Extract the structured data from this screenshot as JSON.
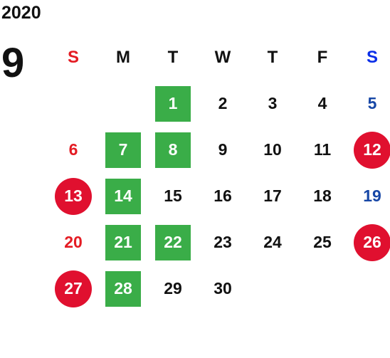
{
  "calendar": {
    "year": "2020",
    "month": "9",
    "weekdays": [
      "S",
      "M",
      "T",
      "W",
      "T",
      "F",
      "S"
    ],
    "weeks": [
      [
        {
          "day": "",
          "style": "empty"
        },
        {
          "day": "",
          "style": "empty"
        },
        {
          "day": "1",
          "style": "green"
        },
        {
          "day": "2",
          "style": "normal"
        },
        {
          "day": "3",
          "style": "normal"
        },
        {
          "day": "4",
          "style": "normal"
        },
        {
          "day": "5",
          "style": "saturday"
        }
      ],
      [
        {
          "day": "6",
          "style": "sunday"
        },
        {
          "day": "7",
          "style": "green"
        },
        {
          "day": "8",
          "style": "green"
        },
        {
          "day": "9",
          "style": "normal"
        },
        {
          "day": "10",
          "style": "normal"
        },
        {
          "day": "11",
          "style": "normal"
        },
        {
          "day": "12",
          "style": "red-circle"
        }
      ],
      [
        {
          "day": "13",
          "style": "red-circle"
        },
        {
          "day": "14",
          "style": "green"
        },
        {
          "day": "15",
          "style": "normal"
        },
        {
          "day": "16",
          "style": "normal"
        },
        {
          "day": "17",
          "style": "normal"
        },
        {
          "day": "18",
          "style": "normal"
        },
        {
          "day": "19",
          "style": "saturday"
        }
      ],
      [
        {
          "day": "20",
          "style": "sunday"
        },
        {
          "day": "21",
          "style": "green"
        },
        {
          "day": "22",
          "style": "green"
        },
        {
          "day": "23",
          "style": "normal"
        },
        {
          "day": "24",
          "style": "normal"
        },
        {
          "day": "25",
          "style": "normal"
        },
        {
          "day": "26",
          "style": "red-circle"
        }
      ],
      [
        {
          "day": "27",
          "style": "red-circle"
        },
        {
          "day": "28",
          "style": "green"
        },
        {
          "day": "29",
          "style": "normal"
        },
        {
          "day": "30",
          "style": "normal"
        },
        {
          "day": "",
          "style": "empty"
        },
        {
          "day": "",
          "style": "empty"
        },
        {
          "day": "",
          "style": "empty"
        }
      ]
    ]
  },
  "colors": {
    "green_highlight": "#3aad48",
    "red_holiday": "#e0102f",
    "sunday_text": "#e41b23",
    "saturday_text": "#1747a6",
    "saturday_header": "#0a2ee8"
  }
}
